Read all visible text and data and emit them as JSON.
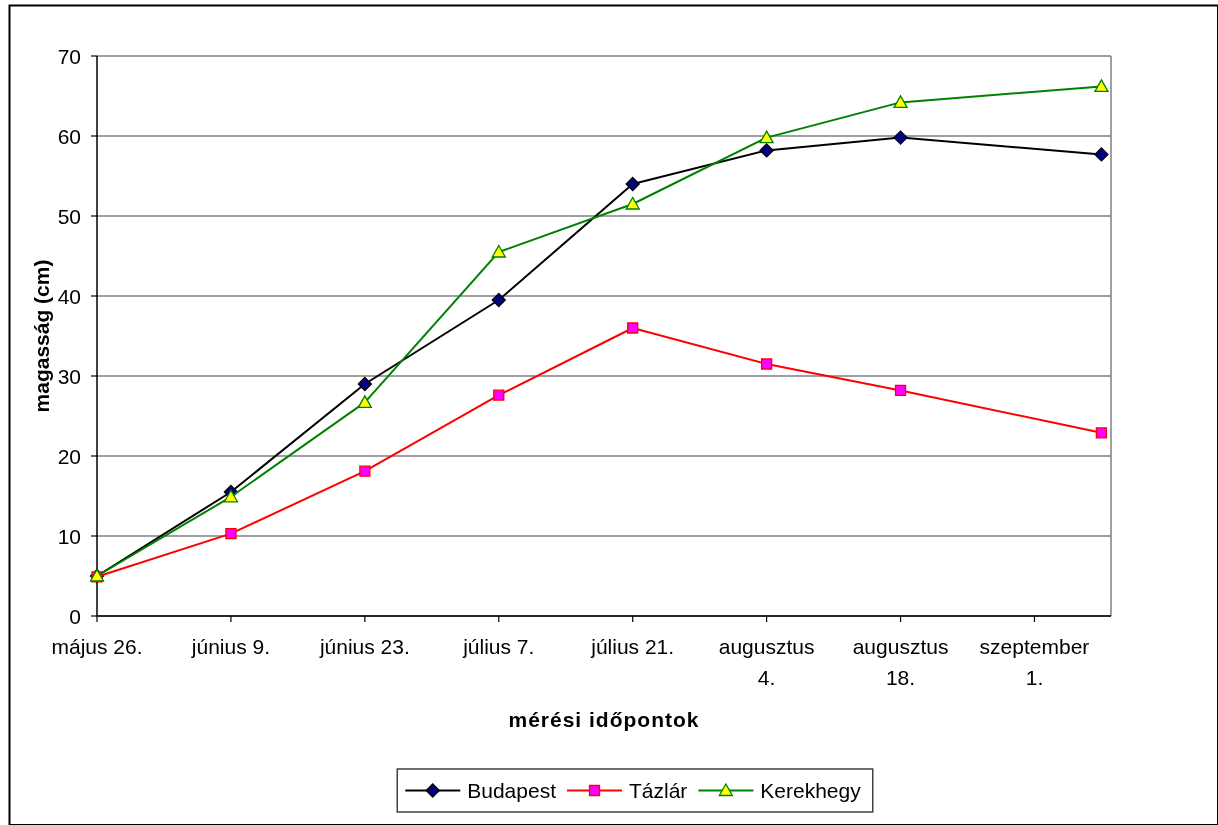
{
  "chart_data": {
    "type": "line",
    "xlabel": "mérési időpontok",
    "ylabel": "magasság (cm)",
    "x": [
      "--05-26",
      "--06-09",
      "--06-23",
      "--07-07",
      "--07-21",
      "--08-04",
      "--08-18",
      "--09-08"
    ],
    "xlim": [
      "--05-26",
      "--09-09"
    ],
    "xticks": [
      {
        "value": "--05-26",
        "label": "május 26."
      },
      {
        "value": "--06-09",
        "label": "június 9."
      },
      {
        "value": "--06-23",
        "label": "június 23."
      },
      {
        "value": "--07-07",
        "label": "július 7."
      },
      {
        "value": "--07-21",
        "label": "július 21."
      },
      {
        "value": "--08-04",
        "label": "augusztus 4."
      },
      {
        "value": "--08-18",
        "label": "augusztus 18."
      },
      {
        "value": "--09-01",
        "label": "szeptember 1."
      }
    ],
    "ylim": [
      0,
      70
    ],
    "yticks": [
      0,
      10,
      20,
      30,
      40,
      50,
      60,
      70
    ],
    "grid": "y",
    "legend": "bottom",
    "series": [
      {
        "name": "Budapest",
        "color": "#000000",
        "marker": "diamond",
        "colors": [
          "#000080",
          "#000080",
          "#000080",
          "#000080",
          "#000080",
          "#000080",
          "#000080",
          "#000080"
        ],
        "values": [
          5.0,
          15.5,
          29.0,
          39.5,
          54.0,
          58.2,
          59.8,
          57.7
        ]
      },
      {
        "name": "Tázlár",
        "color": "#ff0000",
        "marker": "square",
        "colors": [
          "#ff00ff",
          "#ff00ff",
          "#ff00ff",
          "#ff00ff",
          "#ff00ff",
          "#ff00ff",
          "#ff00ff",
          "#ff00ff"
        ],
        "values": [
          4.9,
          10.3,
          18.1,
          27.6,
          36.0,
          31.5,
          28.2,
          22.9
        ]
      },
      {
        "name": "Kerekhegy",
        "color": "#008000",
        "marker": "triangle",
        "colors": [
          "#ffff00",
          "#ffff00",
          "#ffff00",
          "#ffff00",
          "#ffff00",
          "#ffff00",
          "#ffff00",
          "#ffff00"
        ],
        "values": [
          5.0,
          14.9,
          26.7,
          45.5,
          51.5,
          59.8,
          64.2,
          66.2
        ]
      }
    ]
  }
}
